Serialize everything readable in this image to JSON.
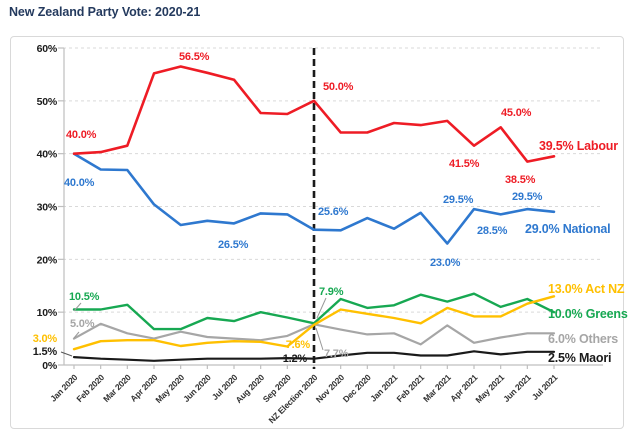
{
  "title": "New Zealand Party Vote: 2020-21",
  "chart_data": {
    "type": "line",
    "title": "New Zealand Party Vote: 2020-21",
    "categories": [
      "Jan 2020",
      "Feb 2020",
      "Mar 2020",
      "Apr 2020",
      "May 2020",
      "Jun 2020",
      "Jul 2020",
      "Aug 2020",
      "Sep 2020",
      "NZ Election 2020",
      "Nov 2020",
      "Dec 2020",
      "Jan 2021",
      "Feb 2021",
      "Mar 2021",
      "Apr 2021",
      "May 2021",
      "Jun 2021",
      "Jul 2021"
    ],
    "ylim": [
      0,
      60
    ],
    "y_ticks": [
      "0%",
      "10%",
      "20%",
      "30%",
      "40%",
      "50%",
      "60%"
    ],
    "grid": "horizontal-dashed",
    "legend_position": "end-of-line-labels",
    "election_line_index": 9,
    "colors": {
      "labour": "#ee1c25",
      "national": "#2e78cf",
      "greens": "#17a852",
      "act": "#ffc000",
      "others": "#a6a6a6",
      "maori": "#1a1a1a",
      "title": "#243a5e",
      "axis": "#bfbfbf",
      "grid": "#d9d9d9"
    },
    "series": [
      {
        "name": "Others",
        "color": "#a6a6a6",
        "width": 2.2,
        "values": [
          5.0,
          7.8,
          6.0,
          5.0,
          6.3,
          5.3,
          5.0,
          4.7,
          5.5,
          7.7,
          6.7,
          5.8,
          6.0,
          3.9,
          7.5,
          4.2,
          5.2,
          6.0,
          6.0
        ]
      },
      {
        "name": "Greens",
        "color": "#17a852",
        "width": 2.4,
        "values": [
          10.5,
          10.5,
          11.4,
          6.8,
          6.8,
          8.9,
          8.3,
          10.0,
          9.0,
          7.9,
          12.5,
          10.8,
          11.3,
          13.3,
          12.0,
          13.5,
          11.0,
          12.5,
          10.0
        ]
      },
      {
        "name": "Act NZ",
        "color": "#ffc000",
        "width": 2.4,
        "values": [
          3.0,
          4.5,
          4.7,
          4.7,
          3.6,
          4.2,
          4.5,
          4.4,
          3.5,
          7.6,
          10.5,
          9.7,
          8.9,
          7.9,
          10.8,
          9.2,
          9.2,
          11.6,
          13.0
        ]
      },
      {
        "name": "Maori",
        "color": "#1a1a1a",
        "width": 2.2,
        "values": [
          1.5,
          1.2,
          1.0,
          0.8,
          1.0,
          1.2,
          1.2,
          1.2,
          1.3,
          1.2,
          1.8,
          2.3,
          2.3,
          1.8,
          1.8,
          2.6,
          2.0,
          2.5,
          2.5
        ]
      },
      {
        "name": "National",
        "color": "#2e78cf",
        "width": 2.6,
        "values": [
          40.0,
          37.0,
          36.9,
          30.4,
          26.5,
          27.3,
          26.8,
          28.7,
          28.5,
          25.6,
          25.5,
          27.8,
          25.8,
          28.8,
          23.0,
          29.5,
          28.5,
          29.5,
          29.0
        ]
      },
      {
        "name": "Labour",
        "color": "#ee1c25",
        "width": 2.6,
        "values": [
          40.0,
          40.3,
          41.5,
          55.2,
          56.5,
          55.3,
          54.0,
          47.7,
          47.5,
          50.0,
          44.0,
          44.0,
          45.8,
          45.4,
          46.2,
          41.5,
          45.0,
          38.5,
          39.5
        ]
      }
    ],
    "axis_side_labels": [
      {
        "text": "3.0%",
        "color": "#ffc000",
        "x": 46,
        "y": 305,
        "anchor": "end"
      },
      {
        "text": "1.5%",
        "color": "#1a1a1a",
        "x": 46,
        "y": 318,
        "anchor": "end",
        "leader": [
          50,
          315,
          61,
          319
        ],
        "leader_color": "#555555"
      }
    ],
    "annotations": [
      {
        "text": "40.0%",
        "color": "#ee1c25",
        "x": 55,
        "y": 101
      },
      {
        "text": "56.5%",
        "color": "#ee1c25",
        "x": 168,
        "y": 23
      },
      {
        "text": "50.0%",
        "color": "#ee1c25",
        "x": 312,
        "y": 53
      },
      {
        "text": "45.0%",
        "color": "#ee1c25",
        "x": 490,
        "y": 79
      },
      {
        "text": "41.5%",
        "color": "#ee1c25",
        "x": 438,
        "y": 130
      },
      {
        "text": "38.5%",
        "color": "#ee1c25",
        "x": 494,
        "y": 146
      },
      {
        "text": "39.5% Labour",
        "color": "#ee1c25",
        "x": 528,
        "y": 113,
        "size": 12.5
      },
      {
        "text": "40.0%",
        "color": "#2e78cf",
        "x": 53,
        "y": 149
      },
      {
        "text": "26.5%",
        "color": "#2e78cf",
        "x": 207,
        "y": 211
      },
      {
        "text": "25.6%",
        "color": "#2e78cf",
        "x": 307,
        "y": 178
      },
      {
        "text": "23.0%",
        "color": "#2e78cf",
        "x": 419,
        "y": 229
      },
      {
        "text": "29.5%",
        "color": "#2e78cf",
        "x": 432,
        "y": 166
      },
      {
        "text": "28.5%",
        "color": "#2e78cf",
        "x": 466,
        "y": 197
      },
      {
        "text": "29.5%",
        "color": "#2e78cf",
        "x": 501,
        "y": 163
      },
      {
        "text": "29.0% National",
        "color": "#2e78cf",
        "x": 514,
        "y": 196,
        "size": 12.5
      },
      {
        "text": "10.5%",
        "color": "#17a852",
        "x": 58,
        "y": 263,
        "leader": [
          70,
          266,
          63,
          274
        ],
        "leader_color": "#999999"
      },
      {
        "text": "5.0%",
        "color": "#a6a6a6",
        "x": 59,
        "y": 290,
        "leader": [
          68,
          295,
          63,
          301
        ],
        "leader_color": "#999999"
      },
      {
        "text": "7.9%",
        "color": "#17a852",
        "x": 308,
        "y": 258,
        "leader": [
          306,
          281,
          315,
          261
        ],
        "leader_color": "#999999"
      },
      {
        "text": "7.6%",
        "color": "#ffc000",
        "x": 299,
        "y": 311,
        "anchor": "end"
      },
      {
        "text": "7.7%",
        "color": "#a6a6a6",
        "x": 313,
        "y": 320,
        "leader": [
          305,
          291,
          312,
          313
        ],
        "leader_color": "#999999"
      },
      {
        "text": "1.2%",
        "color": "#1a1a1a",
        "x": 296,
        "y": 325,
        "anchor": "end"
      },
      {
        "text": "13.0% Act NZ",
        "color": "#ffc000",
        "x": 537,
        "y": 256,
        "size": 12.5
      },
      {
        "text": "10.0% Greens",
        "color": "#17a852",
        "x": 537,
        "y": 281,
        "size": 12.5
      },
      {
        "text": "6.0% Others",
        "color": "#a6a6a6",
        "x": 537,
        "y": 306,
        "size": 12.5
      },
      {
        "text": "2.5% Maori",
        "color": "#1a1a1a",
        "x": 537,
        "y": 325,
        "size": 12.5
      }
    ]
  }
}
